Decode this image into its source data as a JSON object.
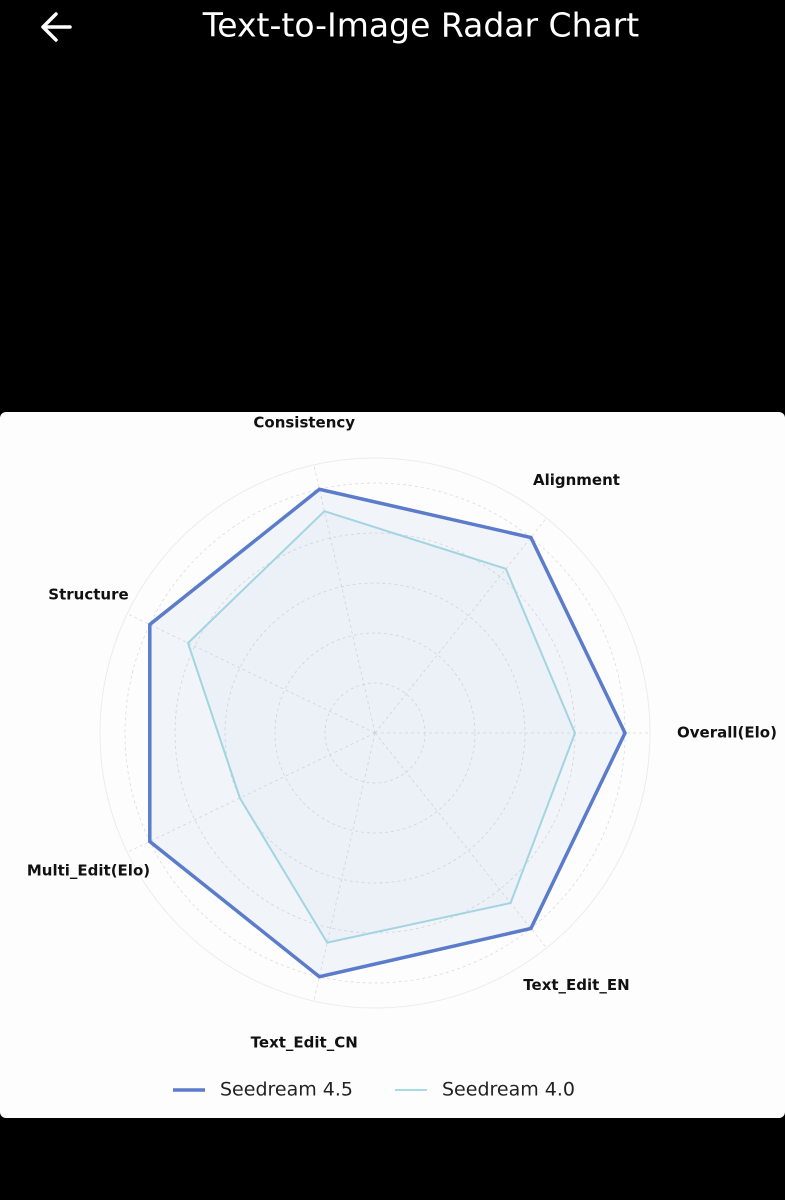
{
  "header": {
    "title": "Text-to-Image Radar Chart"
  },
  "chart_data": {
    "type": "radar",
    "categories": [
      "Overall(Elo)",
      "Alignment",
      "Consistency",
      "Structure",
      "Multi_Edit(Elo)",
      "Text_Edit_CN",
      "Text_Edit_EN"
    ],
    "series": [
      {
        "name": "Seedream 4.5",
        "color": "#5b7bcb",
        "values": [
          1.0,
          1.0,
          1.0,
          1.0,
          1.0,
          1.0,
          1.0
        ]
      },
      {
        "name": "Seedream 4.0",
        "color": "#a8dbe3",
        "values": [
          0.8,
          0.84,
          0.91,
          0.83,
          0.6,
          0.86,
          0.87
        ]
      }
    ],
    "ylim": [
      0,
      1.1
    ],
    "yticks": [
      0.2,
      0.4,
      0.6,
      0.8,
      1.0
    ],
    "grid": true,
    "legend": "bottom"
  }
}
